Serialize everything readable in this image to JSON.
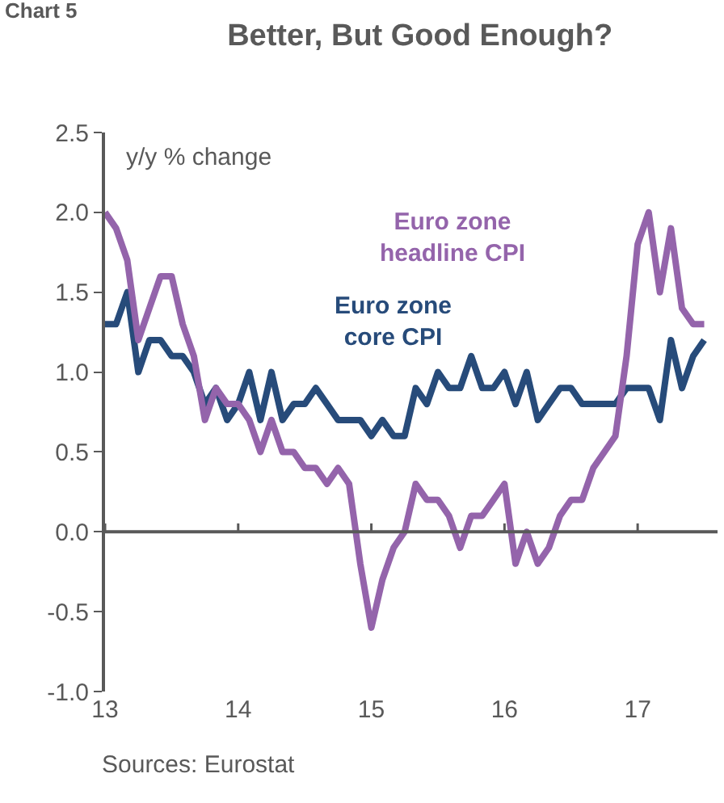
{
  "chart_data": {
    "type": "line",
    "title": "Better, But Good Enough?",
    "ylabel": "y/y % change",
    "annotations": [
      "Chart 5",
      "Sources: Eurostat"
    ],
    "x": [
      13.0,
      13.083,
      13.167,
      13.25,
      13.333,
      13.417,
      13.5,
      13.583,
      13.667,
      13.75,
      13.833,
      13.917,
      14.0,
      14.083,
      14.167,
      14.25,
      14.333,
      14.417,
      14.5,
      14.583,
      14.667,
      14.75,
      14.833,
      14.917,
      15.0,
      15.083,
      15.167,
      15.25,
      15.333,
      15.417,
      15.5,
      15.583,
      15.667,
      15.75,
      15.833,
      15.917,
      16.0,
      16.083,
      16.167,
      16.25,
      16.333,
      16.417,
      16.5,
      16.583,
      16.667,
      16.75,
      16.833,
      16.917,
      17.0,
      17.083,
      17.167,
      17.25,
      17.333,
      17.417,
      17.5
    ],
    "series": [
      {
        "name": "Euro zone core CPI",
        "color": "#274b7a",
        "values": [
          1.3,
          1.3,
          1.5,
          1.0,
          1.2,
          1.2,
          1.1,
          1.1,
          1.0,
          0.8,
          0.9,
          0.7,
          0.8,
          1.0,
          0.7,
          1.0,
          0.7,
          0.8,
          0.8,
          0.9,
          0.8,
          0.7,
          0.7,
          0.7,
          0.6,
          0.7,
          0.6,
          0.6,
          0.9,
          0.8,
          1.0,
          0.9,
          0.9,
          1.1,
          0.9,
          0.9,
          1.0,
          0.8,
          1.0,
          0.7,
          0.8,
          0.9,
          0.9,
          0.8,
          0.8,
          0.8,
          0.8,
          0.9,
          0.9,
          0.9,
          0.7,
          1.2,
          0.9,
          1.1,
          1.2
        ]
      },
      {
        "name": "Euro zone headline CPI",
        "color": "#9464ab",
        "values": [
          2.0,
          1.9,
          1.7,
          1.2,
          1.4,
          1.6,
          1.6,
          1.3,
          1.1,
          0.7,
          0.9,
          0.8,
          0.8,
          0.7,
          0.5,
          0.7,
          0.5,
          0.5,
          0.4,
          0.4,
          0.3,
          0.4,
          0.3,
          -0.2,
          -0.6,
          -0.3,
          -0.1,
          0.0,
          0.3,
          0.2,
          0.2,
          0.1,
          -0.1,
          0.1,
          0.1,
          0.2,
          0.3,
          -0.2,
          0.0,
          -0.2,
          -0.1,
          0.1,
          0.2,
          0.2,
          0.4,
          0.5,
          0.6,
          1.1,
          1.8,
          2.0,
          1.5,
          1.9,
          1.4,
          1.3,
          1.3
        ]
      }
    ],
    "xlim": [
      13,
      17.6
    ],
    "xticks": [
      13,
      14,
      15,
      16,
      17
    ],
    "ylim": [
      -1.0,
      2.5
    ],
    "yticks": [
      {
        "value": -1.0,
        "label": "-1.0"
      },
      {
        "value": -0.5,
        "label": "-0.5"
      },
      {
        "value": 0.0,
        "label": "0.0"
      },
      {
        "value": 0.5,
        "label": "0.5"
      },
      {
        "value": 1.0,
        "label": "1.0"
      },
      {
        "value": 1.5,
        "label": "1.5"
      },
      {
        "value": 2.0,
        "label": "2.0"
      },
      {
        "value": 2.5,
        "label": "2.5"
      }
    ],
    "legend": false,
    "marker": "none",
    "line_style": "solid"
  }
}
